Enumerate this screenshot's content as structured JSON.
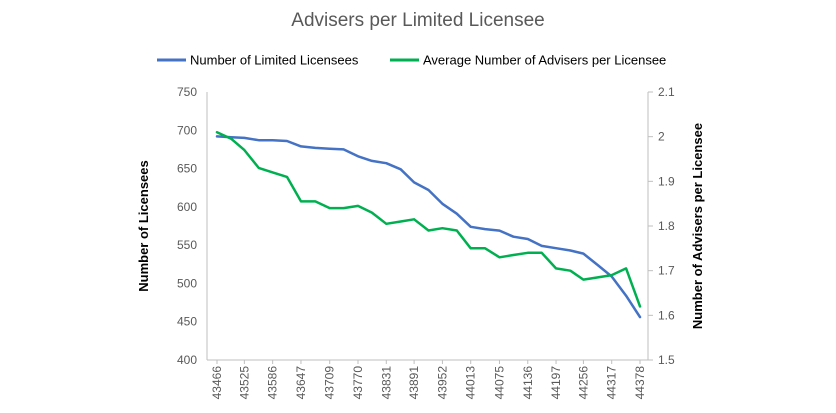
{
  "chart_data": {
    "type": "line",
    "title": "Advisers per Limited Licensee",
    "x": [
      43466,
      43497,
      43525,
      43556,
      43586,
      43617,
      43647,
      43678,
      43709,
      43739,
      43770,
      43800,
      43831,
      43862,
      43891,
      43922,
      43952,
      43983,
      44013,
      44044,
      44075,
      44105,
      44136,
      44166,
      44197,
      44228,
      44256,
      44287,
      44317,
      44348,
      44378
    ],
    "x_tick_labels": [
      "43466",
      "43525",
      "43586",
      "43647",
      "43709",
      "43770",
      "43831",
      "43891",
      "43952",
      "44013",
      "44075",
      "44136",
      "44197",
      "44256",
      "44317",
      "44378"
    ],
    "ylabel": "Number of Licensees",
    "y2label": "Number of Advisers per Licensee",
    "ylim": [
      400,
      750
    ],
    "y_ticks": [
      400,
      450,
      500,
      550,
      600,
      650,
      700,
      750
    ],
    "y2lim": [
      1.5,
      2.1
    ],
    "y2_ticks": [
      "1.5",
      "1.6",
      "1.7",
      "1.8",
      "1.9",
      "2",
      "2.1"
    ],
    "grid": false,
    "legend_position": "top",
    "series": [
      {
        "name": "Number of Limited Licensees",
        "axis": "left",
        "color": "#4472C4",
        "values": [
          692,
          691,
          690,
          687,
          687,
          686,
          679,
          677,
          676,
          675,
          666,
          660,
          657,
          649,
          632,
          622,
          604,
          591,
          574,
          571,
          569,
          561,
          558,
          549,
          546,
          543,
          539,
          524,
          509,
          484,
          456
        ]
      },
      {
        "name": "Average Number of Advisers per Licensee",
        "axis": "right",
        "color": "#00B050",
        "values": [
          2.01,
          1.995,
          1.97,
          1.93,
          1.92,
          1.91,
          1.855,
          1.855,
          1.84,
          1.84,
          1.845,
          1.83,
          1.805,
          1.81,
          1.815,
          1.79,
          1.795,
          1.79,
          1.75,
          1.75,
          1.73,
          1.735,
          1.74,
          1.74,
          1.705,
          1.7,
          1.68,
          1.685,
          1.69,
          1.705,
          1.62
        ]
      }
    ]
  }
}
